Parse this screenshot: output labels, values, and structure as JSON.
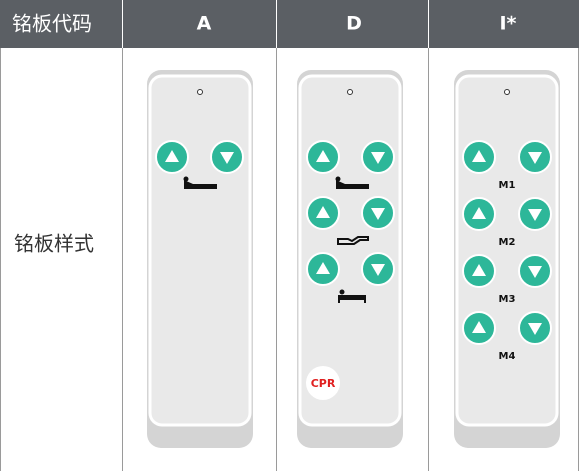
{
  "header": [
    "铭板代码",
    "A",
    "D",
    "I*"
  ],
  "row_label": "铭板样式",
  "remote_d_badge": "CPR",
  "remote_i_labels": [
    "M1",
    "M2",
    "M3",
    "M4"
  ]
}
